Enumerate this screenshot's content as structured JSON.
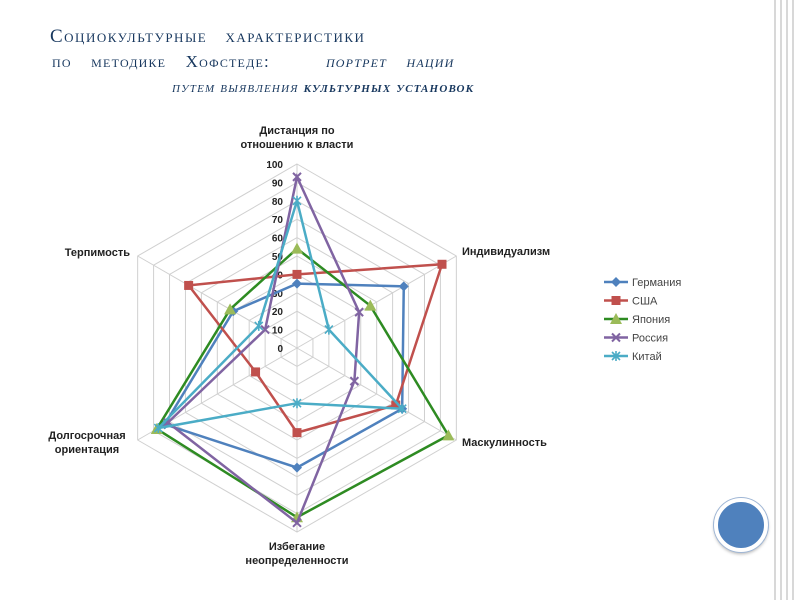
{
  "slide": {
    "title_line1": "Социокультурные характеристики",
    "title_line2_part1": "по методике Хофстеде:",
    "title_line2_part2": "портрет нации",
    "title_line3_part1": "путем выявления ",
    "title_line3_part2": "культурных установок"
  },
  "chart_data": {
    "type": "radar",
    "title": "",
    "axes": [
      {
        "label_lines": [
          "Дистанция по",
          "отношению к власти"
        ]
      },
      {
        "label_lines": [
          "Индивидуализм"
        ]
      },
      {
        "label_lines": [
          "Маскулинность"
        ]
      },
      {
        "label_lines": [
          "Избегание",
          "неопределенности"
        ]
      },
      {
        "label_lines": [
          "Долгосрочная",
          "ориентация"
        ]
      },
      {
        "label_lines": [
          "Терпимость"
        ]
      }
    ],
    "ticks": [
      "0",
      "10",
      "20",
      "30",
      "40",
      "50",
      "60",
      "70",
      "80",
      "90",
      "100"
    ],
    "range": [
      0,
      100
    ],
    "legend_position": "right",
    "series": [
      {
        "name": "Германия",
        "color": "#4f81bd",
        "marker": "diamond",
        "values": [
          35,
          67,
          66,
          65,
          83,
          40
        ]
      },
      {
        "name": "США",
        "color": "#c0504d",
        "marker": "square",
        "values": [
          40,
          91,
          62,
          46,
          26,
          68
        ]
      },
      {
        "name": "Япония",
        "color": "#2e8b22",
        "marker": "triangle",
        "values": [
          54,
          46,
          95,
          92,
          88,
          42
        ]
      },
      {
        "name": "Россия",
        "color": "#8064a2",
        "marker": "x",
        "values": [
          93,
          39,
          36,
          95,
          81,
          20
        ]
      },
      {
        "name": "Китай",
        "color": "#4bacc6",
        "marker": "star",
        "values": [
          80,
          20,
          66,
          30,
          87,
          24
        ]
      }
    ]
  }
}
